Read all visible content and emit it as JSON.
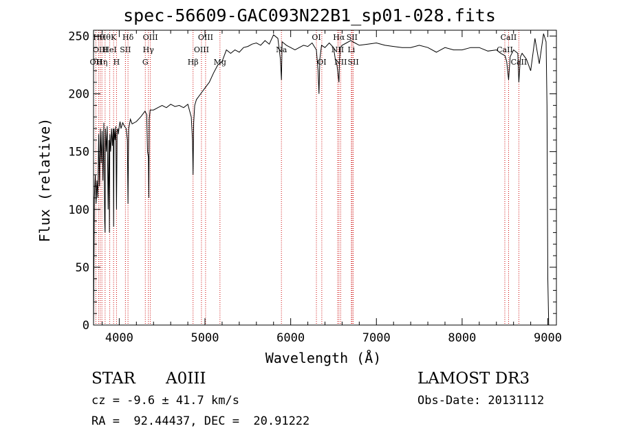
{
  "chart_data": {
    "type": "line",
    "title": "spec-56609-GAC093N22B1_sp01-028.fits",
    "xlabel": "Wavelength (Å)",
    "ylabel": "Flux (relative)",
    "xlim": [
      3700,
      9100
    ],
    "ylim": [
      0,
      255
    ],
    "xticks": [
      4000,
      5000,
      6000,
      7000,
      8000,
      9000
    ],
    "yticks": [
      0,
      50,
      100,
      150,
      200,
      250
    ],
    "grid": false,
    "series": [
      {
        "color": "#000000",
        "x": [
          3700,
          3710,
          3720,
          3730,
          3740,
          3750,
          3760,
          3770,
          3780,
          3790,
          3800,
          3810,
          3820,
          3830,
          3835,
          3840,
          3850,
          3860,
          3870,
          3880,
          3885,
          3890,
          3900,
          3910,
          3920,
          3930,
          3934,
          3940,
          3950,
          3960,
          3968,
          3975,
          3985,
          3990,
          4000,
          4010,
          4020,
          4040,
          4060,
          4080,
          4095,
          4102,
          4110,
          4130,
          4150,
          4200,
          4250,
          4300,
          4320,
          4330,
          4340,
          4345,
          4350,
          4360,
          4400,
          4450,
          4500,
          4550,
          4600,
          4650,
          4700,
          4750,
          4800,
          4840,
          4855,
          4861,
          4868,
          4880,
          4900,
          4950,
          5000,
          5050,
          5100,
          5150,
          5200,
          5250,
          5300,
          5350,
          5400,
          5450,
          5500,
          5550,
          5600,
          5650,
          5700,
          5750,
          5800,
          5850,
          5880,
          5892,
          5900,
          5950,
          6000,
          6050,
          6100,
          6150,
          6200,
          6250,
          6300,
          6320,
          6330,
          6340,
          6360,
          6400,
          6450,
          6500,
          6520,
          6540,
          6556,
          6563,
          6570,
          6580,
          6600,
          6650,
          6700,
          6750,
          6800,
          6900,
          7000,
          7100,
          7200,
          7300,
          7400,
          7500,
          7600,
          7700,
          7800,
          7900,
          8000,
          8100,
          8200,
          8300,
          8400,
          8450,
          8500,
          8520,
          8542,
          8560,
          8600,
          8650,
          8662,
          8680,
          8700,
          8750,
          8800,
          8850,
          8900,
          8950,
          8980,
          8990,
          9000,
          9010
        ],
        "y": [
          0,
          110,
          130,
          105,
          125,
          110,
          165,
          120,
          170,
          140,
          168,
          125,
          175,
          90,
          80,
          170,
          150,
          172,
          100,
          160,
          80,
          165,
          150,
          170,
          155,
          170,
          85,
          170,
          160,
          172,
          100,
          168,
          170,
          165,
          172,
          176,
          170,
          175,
          172,
          170,
          160,
          105,
          170,
          178,
          174,
          176,
          180,
          185,
          182,
          150,
          145,
          110,
          178,
          186,
          186,
          188,
          190,
          188,
          191,
          189,
          190,
          188,
          191,
          180,
          160,
          130,
          175,
          190,
          195,
          200,
          205,
          210,
          218,
          225,
          228,
          238,
          235,
          238,
          236,
          240,
          241,
          243,
          244,
          242,
          246,
          243,
          251,
          248,
          230,
          212,
          245,
          242,
          240,
          238,
          240,
          242,
          241,
          244,
          238,
          220,
          200,
          230,
          242,
          240,
          244,
          240,
          230,
          225,
          215,
          210,
          230,
          240,
          242,
          244,
          246,
          244,
          242,
          243,
          244,
          242,
          241,
          240,
          240,
          242,
          240,
          236,
          240,
          238,
          238,
          240,
          240,
          237,
          238,
          235,
          233,
          228,
          212,
          232,
          238,
          235,
          210,
          232,
          235,
          230,
          220,
          248,
          226,
          252,
          245,
          190,
          40,
          0
        ]
      }
    ],
    "line_markers": [
      {
        "wavelength": 3727,
        "label": "OII",
        "row": 3
      },
      {
        "wavelength": 3760,
        "label": "Hθ",
        "row": 1
      },
      {
        "wavelength": 3779,
        "label": "OIII",
        "row": 2
      },
      {
        "wavelength": 3798,
        "label": "Hη",
        "row": 3
      },
      {
        "wavelength": 3835,
        "label": "Hθ",
        "row": 1
      },
      {
        "wavelength": 3889,
        "label": "HeI",
        "row": 2
      },
      {
        "wavelength": 3934,
        "label": "K",
        "row": 1
      },
      {
        "wavelength": 3968,
        "label": "H",
        "row": 3
      },
      {
        "wavelength": 4072,
        "label": "SII",
        "row": 2
      },
      {
        "wavelength": 4102,
        "label": "Hδ",
        "row": 1
      },
      {
        "wavelength": 4304,
        "label": "G",
        "row": 3
      },
      {
        "wavelength": 4340,
        "label": "Hγ",
        "row": 2
      },
      {
        "wavelength": 4363,
        "label": "OIII",
        "row": 1
      },
      {
        "wavelength": 4861,
        "label": "Hβ",
        "row": 3
      },
      {
        "wavelength": 4959,
        "label": "OIII",
        "row": 2
      },
      {
        "wavelength": 5007,
        "label": "OIII",
        "row": 1
      },
      {
        "wavelength": 5175,
        "label": "Mg",
        "row": 3
      },
      {
        "wavelength": 5892,
        "label": "Na",
        "row": 2
      },
      {
        "wavelength": 6300,
        "label": "OI",
        "row": 1
      },
      {
        "wavelength": 6363,
        "label": "OI",
        "row": 3
      },
      {
        "wavelength": 6548,
        "label": "NII",
        "row": 2
      },
      {
        "wavelength": 6563,
        "label": "Hα",
        "row": 1
      },
      {
        "wavelength": 6583,
        "label": "NII",
        "row": 3
      },
      {
        "wavelength": 6708,
        "label": "Li",
        "row": 2
      },
      {
        "wavelength": 6716,
        "label": "SII",
        "row": 1
      },
      {
        "wavelength": 6730,
        "label": "SII",
        "row": 3
      },
      {
        "wavelength": 8498,
        "label": "CaII",
        "row": 2
      },
      {
        "wavelength": 8542,
        "label": "CaII",
        "row": 1
      },
      {
        "wavelength": 8662,
        "label": "CaII",
        "row": 3
      }
    ],
    "marker_color": "#cc0000"
  },
  "info": {
    "object_class": "STAR",
    "subclass": "A0III",
    "survey": "LAMOST DR3",
    "redshift_text": "cz = -9.6 ± 41.7 km/s",
    "obs_date_text": "Obs-Date: 20131112",
    "coords_text": "RA =  92.44437, DEC =  20.91222"
  }
}
